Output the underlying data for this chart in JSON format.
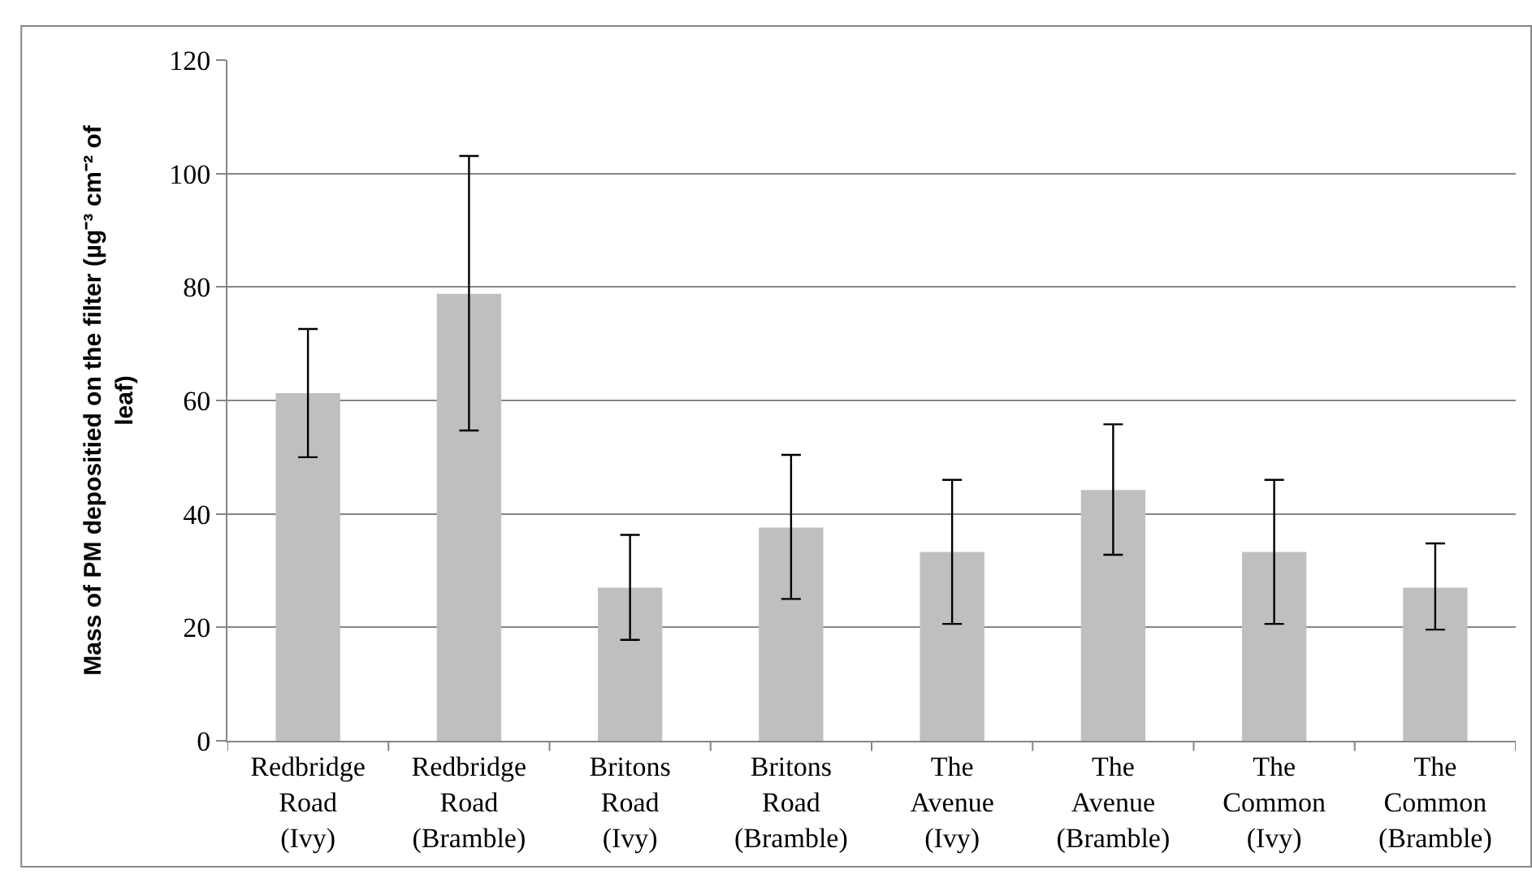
{
  "chart_data": {
    "type": "bar",
    "ylabel": "Mass of PM depositied on the filter (µg⁻³ cm⁻² of leaf)",
    "categories": [
      "Redbridge Road (Ivy)",
      "Redbridge Road (Bramble)",
      "Britons Road (Ivy)",
      "Britons Road (Bramble)",
      "The Avenue (Ivy)",
      "The Avenue (Bramble)",
      "The Common (Ivy)",
      "The Common (Bramble)"
    ],
    "values": [
      61.3,
      78.8,
      27.0,
      37.6,
      33.3,
      44.2,
      33.3,
      27.0
    ],
    "errors": [
      [
        50.0,
        72.6
      ],
      [
        54.7,
        103.1
      ],
      [
        17.8,
        36.3
      ],
      [
        25.0,
        50.4
      ],
      [
        20.6,
        46.0
      ],
      [
        32.8,
        55.8
      ],
      [
        20.6,
        46.0
      ],
      [
        19.6,
        34.8
      ]
    ],
    "color": "#bfbfbf",
    "ylim": [
      0,
      120
    ],
    "yticks": [
      0,
      20,
      40,
      60,
      80,
      100,
      120
    ],
    "grid": "y"
  }
}
